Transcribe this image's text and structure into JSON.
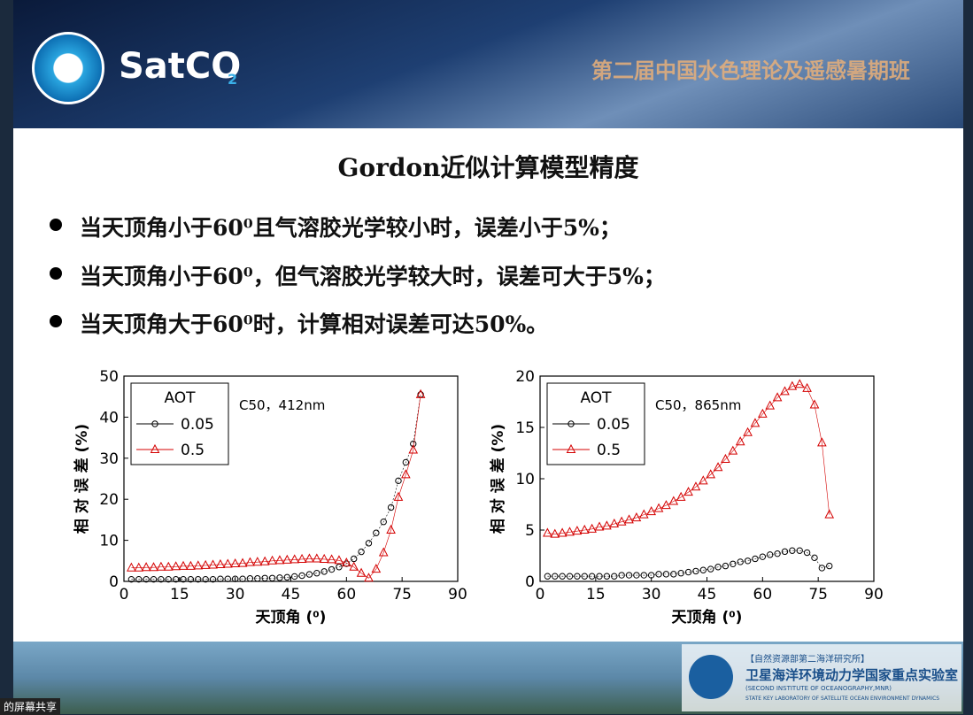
{
  "header": {
    "logo_text": "SatCO",
    "logo_sub": "2",
    "banner_title": "第二届中国水色理论及遥感暑期班"
  },
  "slide": {
    "title": "Gordon近似计算模型精度",
    "bullets": [
      "当天顶角小于60⁰且气溶胶光学较小时，误差小于5%；",
      "当天顶角小于60⁰，但气溶胶光学较大时，误差可大于5%；",
      "当天顶角大于60⁰时，计算相对误差可达50%。"
    ]
  },
  "chart_data": [
    {
      "type": "line",
      "annotation": "C50，412nm",
      "x_label": "天顶角 (⁰)",
      "y_label": "相 对 误 差 (%)",
      "legend_title": "AOT",
      "xlim": [
        0,
        90
      ],
      "xticks": [
        0,
        15,
        30,
        45,
        60,
        75,
        90
      ],
      "ylim": [
        0,
        50
      ],
      "yticks": [
        0,
        10,
        20,
        30,
        40,
        50
      ],
      "x": [
        2,
        4,
        6,
        8,
        10,
        12,
        14,
        16,
        18,
        20,
        22,
        24,
        26,
        28,
        30,
        32,
        34,
        36,
        38,
        40,
        42,
        44,
        46,
        48,
        50,
        52,
        54,
        56,
        58,
        60,
        62,
        64,
        66,
        68,
        70,
        72,
        74,
        76,
        78,
        80
      ],
      "series": [
        {
          "name": "0.05",
          "color": "#000000",
          "marker": "circle",
          "values": [
            0.5,
            0.5,
            0.5,
            0.5,
            0.5,
            0.5,
            0.5,
            0.5,
            0.5,
            0.5,
            0.5,
            0.5,
            0.6,
            0.6,
            0.6,
            0.6,
            0.7,
            0.7,
            0.8,
            0.8,
            0.9,
            1.0,
            1.2,
            1.4,
            1.7,
            2.0,
            2.4,
            2.9,
            3.5,
            4.3,
            5.5,
            7.2,
            9.3,
            11.8,
            14.5,
            18.0,
            24.5,
            29.0,
            33.5,
            45.5
          ]
        },
        {
          "name": "0.5",
          "color": "#d40000",
          "marker": "triangle",
          "values": [
            3.3,
            3.3,
            3.4,
            3.4,
            3.5,
            3.5,
            3.6,
            3.7,
            3.7,
            3.8,
            3.9,
            4.0,
            4.1,
            4.2,
            4.3,
            4.4,
            4.6,
            4.7,
            4.8,
            5.0,
            5.1,
            5.2,
            5.3,
            5.4,
            5.5,
            5.5,
            5.4,
            5.3,
            5.1,
            4.5,
            3.5,
            2.0,
            0.8,
            3.0,
            7.0,
            12.5,
            20.5,
            26.0,
            32.0,
            45.5
          ]
        }
      ]
    },
    {
      "type": "line",
      "annotation": "C50，865nm",
      "x_label": "天顶角 (⁰)",
      "y_label": "相 对 误 差 (%)",
      "legend_title": "AOT",
      "xlim": [
        0,
        90
      ],
      "xticks": [
        0,
        15,
        30,
        45,
        60,
        75,
        90
      ],
      "ylim": [
        0,
        20
      ],
      "yticks": [
        0,
        5,
        10,
        15,
        20
      ],
      "x": [
        2,
        4,
        6,
        8,
        10,
        12,
        14,
        16,
        18,
        20,
        22,
        24,
        26,
        28,
        30,
        32,
        34,
        36,
        38,
        40,
        42,
        44,
        46,
        48,
        50,
        52,
        54,
        56,
        58,
        60,
        62,
        64,
        66,
        68,
        70,
        72,
        74,
        76,
        78
      ],
      "series": [
        {
          "name": "0.05",
          "color": "#000000",
          "marker": "circle",
          "values": [
            0.5,
            0.5,
            0.5,
            0.5,
            0.5,
            0.5,
            0.5,
            0.5,
            0.5,
            0.5,
            0.6,
            0.6,
            0.6,
            0.6,
            0.6,
            0.7,
            0.7,
            0.7,
            0.8,
            0.9,
            1.0,
            1.1,
            1.2,
            1.4,
            1.5,
            1.7,
            1.9,
            2.0,
            2.2,
            2.4,
            2.6,
            2.7,
            2.9,
            3.0,
            3.0,
            2.8,
            2.3,
            1.3,
            1.5
          ]
        },
        {
          "name": "0.5",
          "color": "#d40000",
          "marker": "triangle",
          "values": [
            4.7,
            4.6,
            4.7,
            4.8,
            4.9,
            5.0,
            5.1,
            5.3,
            5.4,
            5.6,
            5.8,
            6.0,
            6.2,
            6.5,
            6.8,
            7.1,
            7.4,
            7.8,
            8.2,
            8.7,
            9.2,
            9.8,
            10.4,
            11.1,
            11.9,
            12.7,
            13.6,
            14.5,
            15.4,
            16.3,
            17.1,
            17.9,
            18.5,
            19.0,
            19.2,
            18.8,
            17.2,
            13.5,
            6.5
          ]
        }
      ]
    }
  ],
  "footer": {
    "institute_cn": "【自然资源部第二海洋研究所】",
    "lab_cn": "卫星海洋环境动力学国家重点实验室",
    "institute_en": "(SECOND INSTITUTE OF OCEANOGRAPHY,MNR)",
    "lab_en": "STATE KEY LABORATORY OF SATELLITE OCEAN ENVIRONMENT DYNAMICS",
    "share_text": "的屏幕共享"
  }
}
